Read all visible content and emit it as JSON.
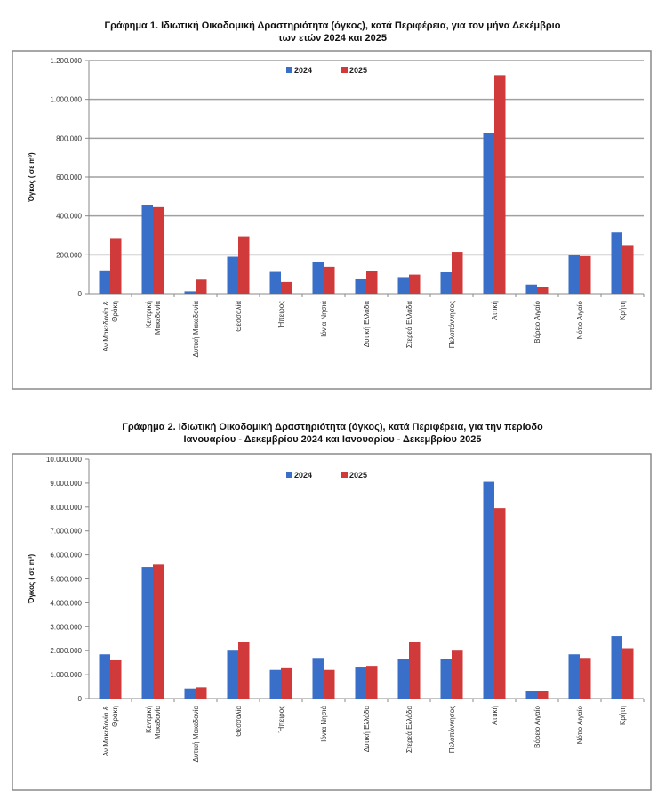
{
  "chart_data": [
    {
      "type": "bar",
      "title_line1": "Γράφημα 1.  Ιδιωτική Οικοδομική Δραστηριότητα (όγκος), κατά Περιφέρεια, για τον μήνα Δεκέμβριο",
      "title_line2": "των ετών 2024 και 2025",
      "ylabel": "Όγκος ( σε m³)",
      "xlabel": "",
      "ylim": [
        0,
        1200000
      ],
      "ytick_step": 200000,
      "yticks": [
        "0",
        "200.000",
        "400.000",
        "600.000",
        "800.000",
        "1.000.000",
        "1.200.000"
      ],
      "grid": true,
      "legend_position": "top-center",
      "categories": [
        [
          "Αν.Μακεδονία &",
          "Θράκη"
        ],
        [
          "Κεντρική",
          "Μακεδονία"
        ],
        [
          "Δυτική Μακεδονία"
        ],
        [
          "Θεσσαλία"
        ],
        [
          "Ήπειρος"
        ],
        [
          "Ιόνια Νησιά"
        ],
        [
          "Δυτική Ελλάδα"
        ],
        [
          "Στερεά Ελλάδα"
        ],
        [
          "Πελοπόννησος"
        ],
        [
          "Αττική"
        ],
        [
          "Βόρειο Αιγαίο"
        ],
        [
          "Νότιο Αιγαίο"
        ],
        [
          "Κρήτη"
        ]
      ],
      "series": [
        {
          "name": "2024",
          "color": "#3a6fc9",
          "values": [
            120000,
            458000,
            12000,
            190000,
            112000,
            165000,
            78000,
            85000,
            110000,
            825000,
            47000,
            200000,
            315000
          ]
        },
        {
          "name": "2025",
          "color": "#d03a3a",
          "values": [
            282000,
            445000,
            72000,
            295000,
            60000,
            138000,
            118000,
            98000,
            215000,
            1125000,
            33000,
            193000,
            250000
          ]
        }
      ]
    },
    {
      "type": "bar",
      "title_line1": "Γράφημα 2.  Ιδιωτική Οικοδομική Δραστηριότητα (όγκος), κατά Περιφέρεια, για την περίοδο",
      "title_line2": "Ιανουαρίου  - Δεκεμβρίου 2024 και Ιανουαρίου  - Δεκεμβρίου 2025",
      "ylabel": "Όγκος ( σε m³)",
      "xlabel": "",
      "ylim": [
        0,
        10000000
      ],
      "ytick_step": 1000000,
      "yticks": [
        "0",
        "1.000.000",
        "2.000.000",
        "3.000.000",
        "4.000.000",
        "5.000.000",
        "6.000.000",
        "7.000.000",
        "8.000.000",
        "9.000.000",
        "10.000.000"
      ],
      "grid": false,
      "legend_position": "top-center",
      "categories": [
        [
          "Αν.Μακεδονία &",
          "Θράκη"
        ],
        [
          "Κεντρική",
          "Μακεδονία"
        ],
        [
          "Δυτική Μακεδονία"
        ],
        [
          "Θεσσαλία"
        ],
        [
          "Ήπειρος"
        ],
        [
          "Ιόνια Νησιά"
        ],
        [
          "Δυτική Ελλάδα"
        ],
        [
          "Στερεά Ελλάδα"
        ],
        [
          "Πελοπόννησος"
        ],
        [
          "Αττική"
        ],
        [
          "Βόρειο Αιγαίο"
        ],
        [
          "Νότιο Αιγαίο"
        ],
        [
          "Κρήτη"
        ]
      ],
      "series": [
        {
          "name": "2024",
          "color": "#3a6fc9",
          "values": [
            1850000,
            5500000,
            420000,
            2000000,
            1200000,
            1700000,
            1300000,
            1650000,
            1650000,
            9050000,
            300000,
            1850000,
            2600000
          ]
        },
        {
          "name": "2025",
          "color": "#d03a3a",
          "values": [
            1600000,
            5600000,
            470000,
            2350000,
            1270000,
            1200000,
            1370000,
            2350000,
            2000000,
            7950000,
            300000,
            1700000,
            2100000
          ]
        }
      ]
    }
  ]
}
